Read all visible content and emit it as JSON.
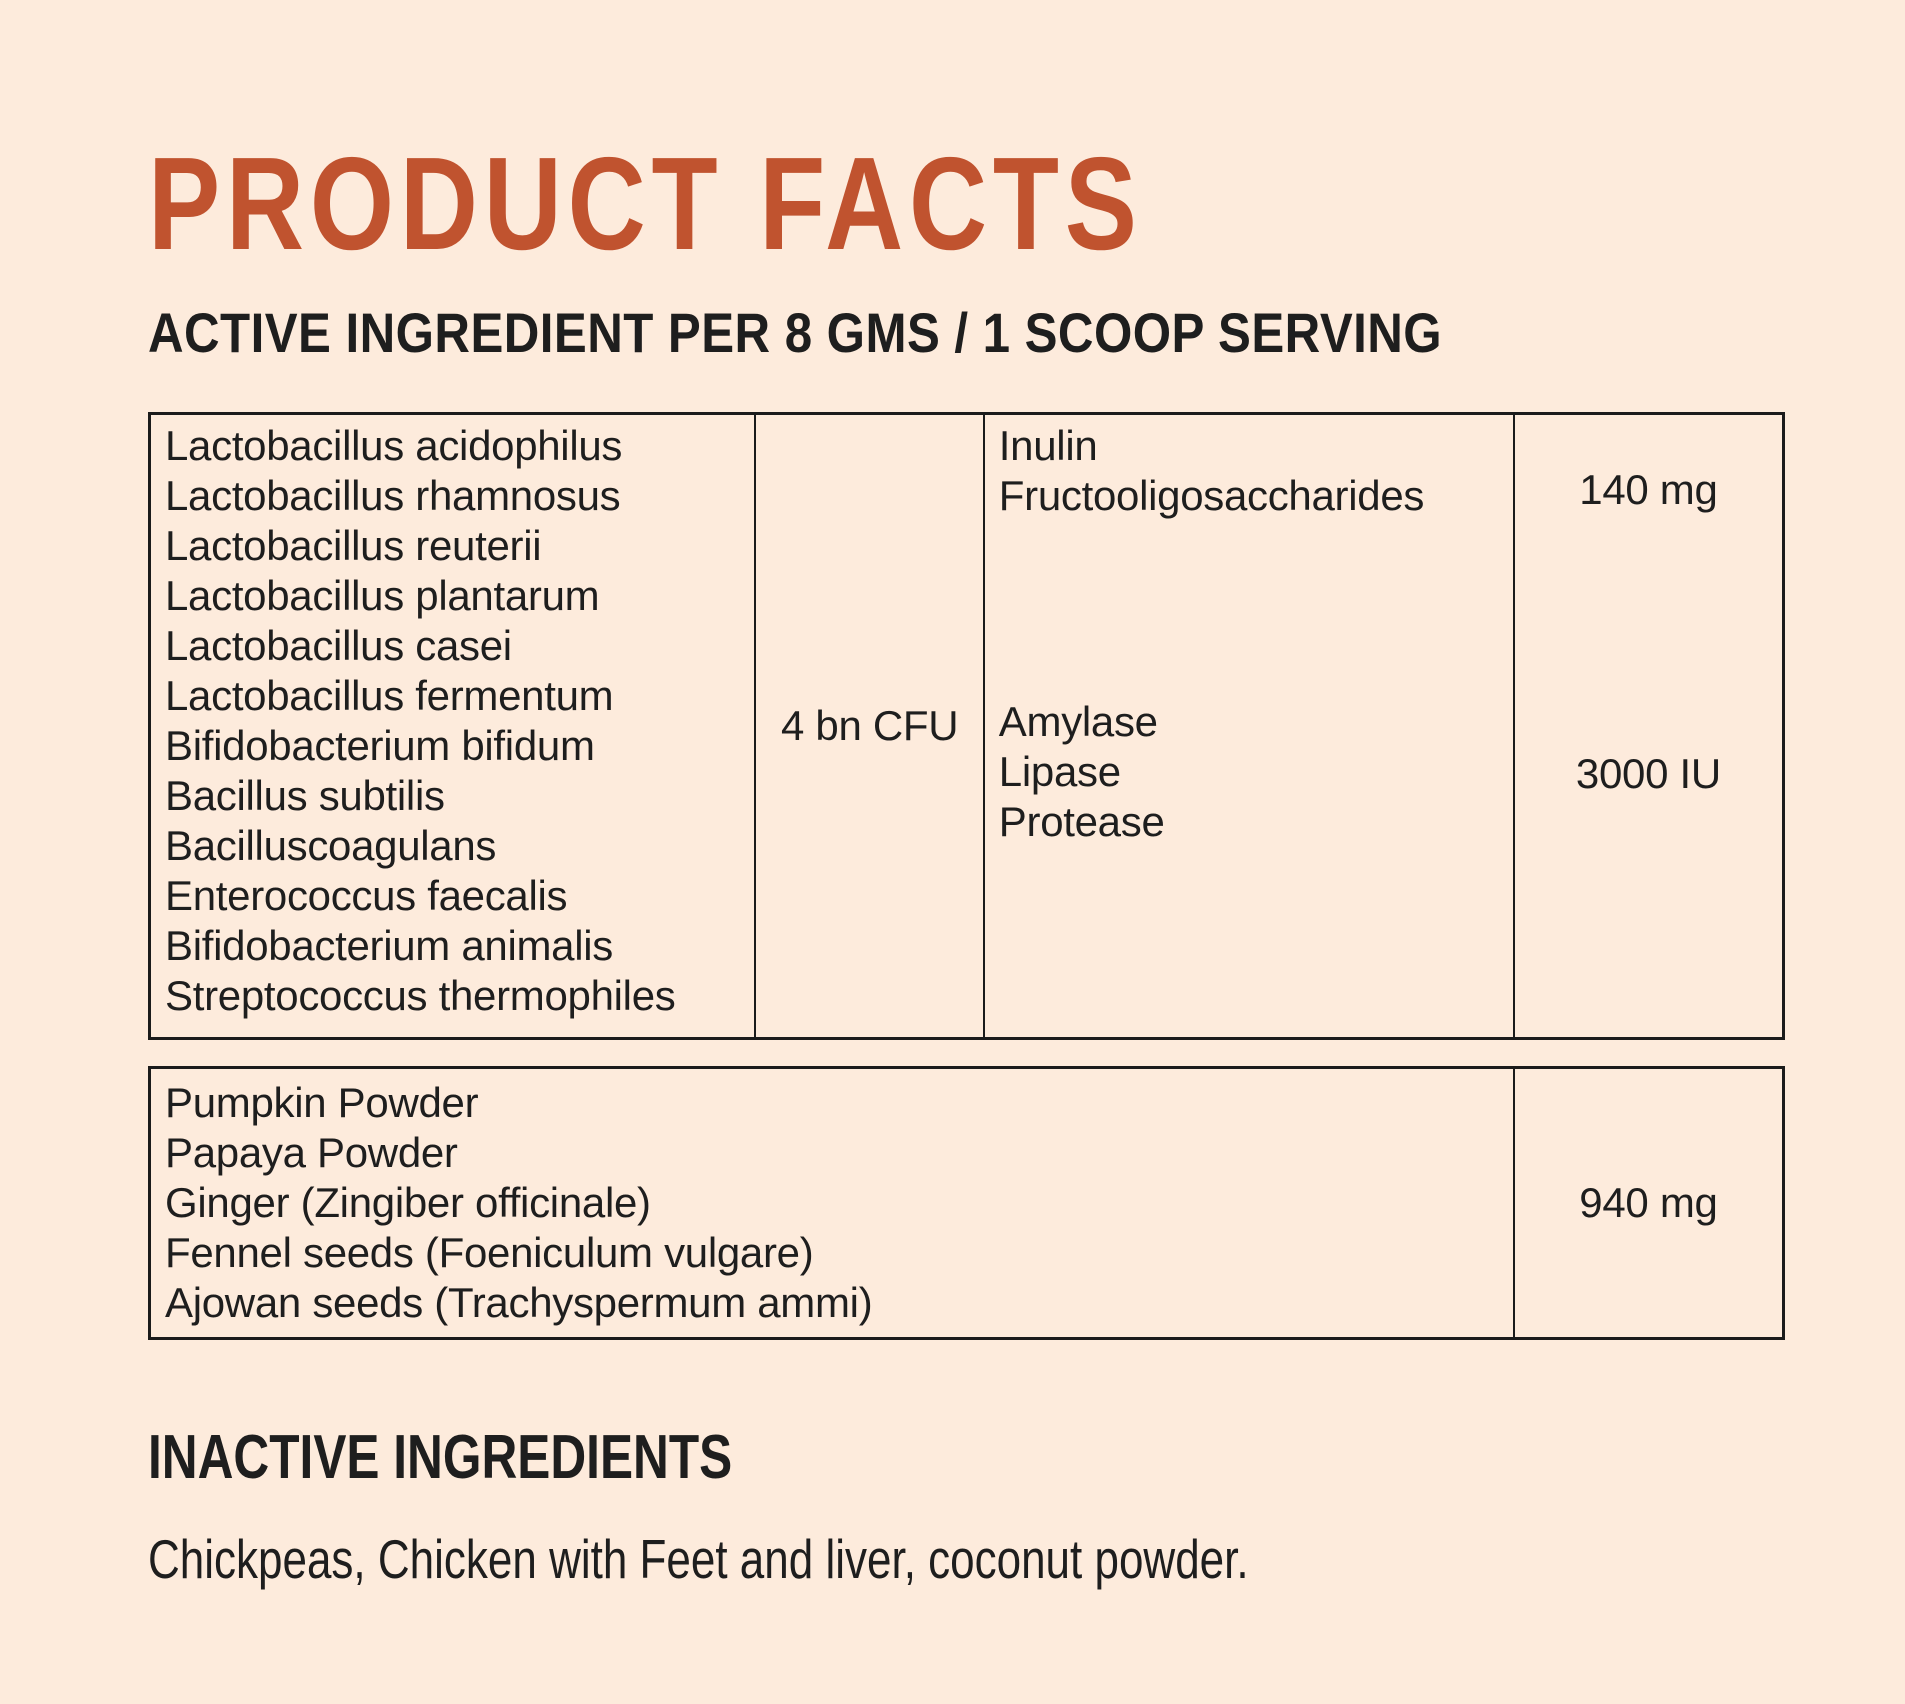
{
  "colors": {
    "background": "#FDEBDC",
    "accent_title": "#C0532F",
    "text": "#1E1E1E",
    "table_border": "#1B1B1B"
  },
  "header": {
    "title": "PRODUCT FACTS",
    "subtitle": "ACTIVE INGREDIENT PER 8 GMS / 1 SCOOP SERVING"
  },
  "active_table": {
    "probiotics": [
      "Lactobacillus acidophilus",
      "Lactobacillus rhamnosus",
      "Lactobacillus reuterii",
      "Lactobacillus plantarum",
      "Lactobacillus casei",
      "Lactobacillus fermentum",
      "Bifidobacterium bifidum",
      "Bacillus subtilis",
      "Bacilluscoagulans",
      "Enterococcus faecalis",
      "Bifidobacterium animalis",
      "Streptococcus thermophiles"
    ],
    "probiotics_amount": "4 bn CFU",
    "prebiotics": [
      "Inulin",
      "Fructooligosaccharides"
    ],
    "prebiotics_amount": "140 mg",
    "enzymes": [
      "Amylase",
      "Lipase",
      "Protease"
    ],
    "enzymes_amount": "3000 IU"
  },
  "botanical_table": {
    "items": [
      "Pumpkin Powder",
      "Papaya Powder",
      "Ginger (Zingiber officinale)",
      "Fennel seeds (Foeniculum vulgare)",
      "Ajowan seeds (Trachyspermum ammi)"
    ],
    "amount": "940 mg"
  },
  "inactive": {
    "heading": "INACTIVE INGREDIENTS",
    "text": "Chickpeas, Chicken with Feet and liver, coconut powder."
  }
}
